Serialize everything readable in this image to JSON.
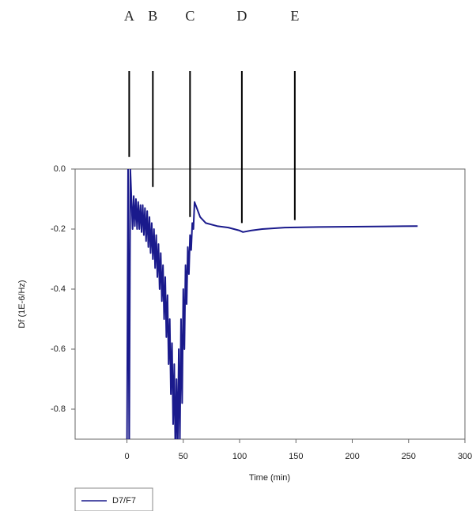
{
  "chart_data": {
    "type": "line",
    "x_label": "Time (min)",
    "y_label": "Df (1E-6/Hz)",
    "xlim": [
      -46,
      300
    ],
    "xticks": [
      0,
      50,
      100,
      150,
      200,
      250,
      300
    ],
    "ylim": [
      -0.9,
      0
    ],
    "yticks": [
      {
        "value": 0,
        "label": "0.0"
      },
      -0.2,
      -0.4,
      -0.6,
      -0.8
    ],
    "annotations": [
      {
        "label": "A",
        "x": 2,
        "y": 0.04
      },
      {
        "label": "B",
        "x": 23,
        "y": -0.06
      },
      {
        "label": "C",
        "x": 56,
        "y": -0.16
      },
      {
        "label": "D",
        "x": 102,
        "y": -0.18
      },
      {
        "label": "E",
        "x": 149,
        "y": -0.17
      }
    ],
    "series": [
      {
        "name": "D7/F7",
        "color": "#1a1a8c",
        "x": [
          0,
          1,
          2,
          3,
          4,
          5,
          6,
          7,
          8,
          9,
          10,
          11,
          12,
          13,
          14,
          15,
          16,
          17,
          18,
          19,
          20,
          21,
          22,
          23,
          24,
          25,
          26,
          27,
          28,
          29,
          30,
          31,
          32,
          33,
          34,
          35,
          36,
          37,
          38,
          39,
          40,
          41,
          42,
          43,
          44,
          45,
          46,
          47,
          48,
          49,
          50,
          51,
          52,
          53,
          54,
          55,
          56,
          57,
          58,
          59,
          60,
          62,
          65,
          70,
          80,
          90,
          100,
          103,
          110,
          120,
          140,
          170,
          200,
          230,
          258
        ],
        "values": [
          -0.95,
          0.0,
          -0.95,
          0.0,
          -0.1,
          -0.2,
          -0.09,
          -0.19,
          -0.1,
          -0.2,
          -0.11,
          -0.2,
          -0.12,
          -0.21,
          -0.12,
          -0.22,
          -0.13,
          -0.24,
          -0.14,
          -0.26,
          -0.16,
          -0.28,
          -0.18,
          -0.3,
          -0.2,
          -0.33,
          -0.22,
          -0.36,
          -0.25,
          -0.4,
          -0.28,
          -0.44,
          -0.32,
          -0.5,
          -0.36,
          -0.56,
          -0.42,
          -0.65,
          -0.5,
          -0.75,
          -0.58,
          -0.85,
          -0.65,
          -0.95,
          -0.7,
          -0.95,
          -0.6,
          -0.9,
          -0.5,
          -0.78,
          -0.4,
          -0.6,
          -0.32,
          -0.45,
          -0.26,
          -0.35,
          -0.22,
          -0.27,
          -0.18,
          -0.2,
          -0.11,
          -0.13,
          -0.16,
          -0.18,
          -0.19,
          -0.195,
          -0.205,
          -0.21,
          -0.205,
          -0.2,
          -0.195,
          -0.193,
          -0.192,
          -0.191,
          -0.19
        ]
      }
    ]
  }
}
